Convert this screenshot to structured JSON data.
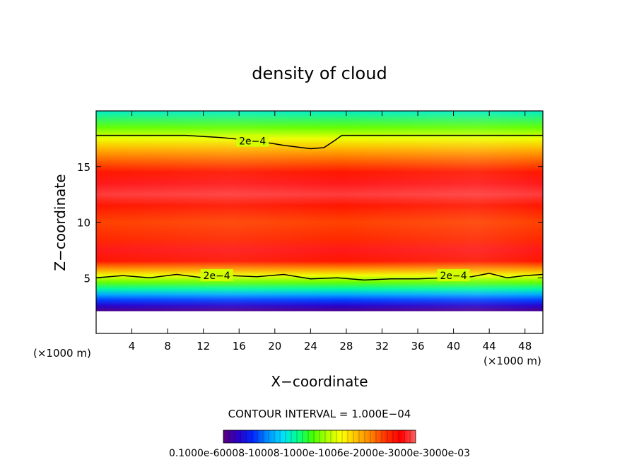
{
  "chart_data": {
    "type": "heatmap",
    "title": "density of cloud",
    "xlabel": "X−coordinate",
    "ylabel": "Z−coordinate",
    "x_unit_left": "(×1000 m)",
    "x_unit_right": "(×1000 m)",
    "xlim": [
      0,
      50
    ],
    "ylim": [
      0,
      20
    ],
    "x_ticks": [
      4,
      8,
      12,
      16,
      20,
      24,
      28,
      32,
      36,
      40,
      44,
      48
    ],
    "y_ticks": [
      5,
      10,
      15
    ],
    "contour_interval_text": "CONTOUR INTERVAL = 1.000E−04",
    "contour_labels": [
      {
        "text": "2e−4",
        "x": 17.5,
        "z": 17.3
      },
      {
        "text": "2e−4",
        "x": 13.5,
        "z": 5.2
      },
      {
        "text": "2e−4",
        "x": 40.0,
        "z": 5.2
      }
    ],
    "upper_contour_2e-4": [
      [
        0,
        17.8
      ],
      [
        10,
        17.8
      ],
      [
        14,
        17.6
      ],
      [
        18,
        17.3
      ],
      [
        21,
        16.9
      ],
      [
        24,
        16.6
      ],
      [
        25.5,
        16.7
      ],
      [
        26.8,
        17.4
      ],
      [
        27.5,
        17.8
      ],
      [
        32,
        17.8
      ],
      [
        40,
        17.8
      ],
      [
        50,
        17.8
      ]
    ],
    "lower_contour_2e-4": [
      [
        0,
        5.0
      ],
      [
        3,
        5.2
      ],
      [
        6,
        5.0
      ],
      [
        9,
        5.3
      ],
      [
        12,
        5.0
      ],
      [
        15,
        5.2
      ],
      [
        18,
        5.1
      ],
      [
        21,
        5.3
      ],
      [
        24,
        4.9
      ],
      [
        27,
        5.0
      ],
      [
        30,
        4.8
      ],
      [
        33,
        4.9
      ],
      [
        36,
        4.9
      ],
      [
        39,
        5.0
      ],
      [
        42,
        5.1
      ],
      [
        44,
        5.4
      ],
      [
        46,
        5.0
      ],
      [
        48,
        5.2
      ],
      [
        50,
        5.3
      ]
    ],
    "vertical_profile": [
      {
        "z": 20.0,
        "value": 0.00012
      },
      {
        "z": 18.5,
        "value": 0.00017
      },
      {
        "z": 17.5,
        "value": 0.00021
      },
      {
        "z": 16.5,
        "value": 0.00025
      },
      {
        "z": 15.5,
        "value": 0.00028
      },
      {
        "z": 14.5,
        "value": 0.00031
      },
      {
        "z": 13.5,
        "value": 0.00033
      },
      {
        "z": 12.5,
        "value": 0.00034
      },
      {
        "z": 11.5,
        "value": 0.00031
      },
      {
        "z": 10.0,
        "value": 0.00029
      },
      {
        "z": 8.5,
        "value": 0.0003
      },
      {
        "z": 7.5,
        "value": 0.00033
      },
      {
        "z": 6.5,
        "value": 0.00031
      },
      {
        "z": 5.8,
        "value": 0.00026
      },
      {
        "z": 5.2,
        "value": 0.00021
      },
      {
        "z": 4.6,
        "value": 0.00017
      },
      {
        "z": 4.0,
        "value": 0.00013
      },
      {
        "z": 3.5,
        "value": 9e-05
      },
      {
        "z": 3.0,
        "value": 6e-05
      },
      {
        "z": 2.5,
        "value": 3e-05
      },
      {
        "z": 2.1,
        "value": 1e-05
      }
    ],
    "no_data_below_z": 2.0,
    "colorbar": {
      "vmin": 0.0,
      "vmax": 0.00035,
      "tick_text": "0.1000e-60008-10008-1000e-1006e-2000e-3000e-3000e-03",
      "colors": [
        "#5a007a",
        "#2a00c8",
        "#0028ff",
        "#0090ff",
        "#00e0ff",
        "#00ff90",
        "#40ff00",
        "#b0ff00",
        "#ffff00",
        "#ffc000",
        "#ff8000",
        "#ff3000",
        "#ff0000",
        "#ff6060"
      ]
    }
  }
}
